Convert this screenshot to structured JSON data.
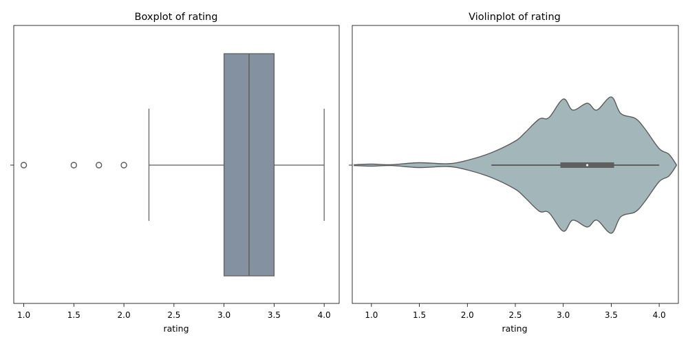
{
  "chart_data": [
    {
      "type": "box",
      "title": "Boxplot of rating",
      "xlabel": "rating",
      "ylabel": "",
      "xlim": [
        0.9,
        4.15
      ],
      "xticks": [
        "1.0",
        "1.5",
        "2.0",
        "2.5",
        "3.0",
        "3.5",
        "4.0"
      ],
      "tick_values": [
        1.0,
        1.5,
        2.0,
        2.5,
        3.0,
        3.5,
        4.0
      ],
      "stats": {
        "whisker_low": 2.25,
        "q1": 3.0,
        "median": 3.25,
        "q3": 3.5,
        "whisker_high": 4.0
      },
      "outliers": [
        1.0,
        1.5,
        1.75,
        2.0
      ],
      "color": "#8491a0",
      "line_color": "#5a5a5a",
      "grid": false
    },
    {
      "type": "violin",
      "title": "Violinplot of rating",
      "xlabel": "rating",
      "ylabel": "",
      "xlim": [
        0.8,
        4.2
      ],
      "xticks": [
        "1.0",
        "1.5",
        "2.0",
        "2.5",
        "3.0",
        "3.5",
        "4.0"
      ],
      "tick_values": [
        1.0,
        1.5,
        2.0,
        2.5,
        3.0,
        3.5,
        4.0
      ],
      "density": {
        "x": [
          0.82,
          1.0,
          1.2,
          1.5,
          1.8,
          2.0,
          2.25,
          2.5,
          2.6,
          2.75,
          2.85,
          3.0,
          3.1,
          3.25,
          3.35,
          3.5,
          3.6,
          3.75,
          3.85,
          4.0,
          4.1,
          4.18
        ],
        "half_width": [
          0.5,
          1.5,
          0.6,
          3.5,
          2.0,
          7.0,
          18.0,
          35.0,
          47.0,
          67.0,
          69.0,
          96.0,
          80.0,
          90.0,
          80.0,
          99.0,
          75.0,
          68.0,
          53.0,
          24.0,
          16.0,
          0.5
        ]
      },
      "stats": {
        "whisker_low": 2.25,
        "q1": 2.97,
        "median": 3.25,
        "q3": 3.53,
        "whisker_high": 4.0
      },
      "color": "#a3b7bb",
      "line_color": "#5a5a5a",
      "grid": false
    }
  ]
}
